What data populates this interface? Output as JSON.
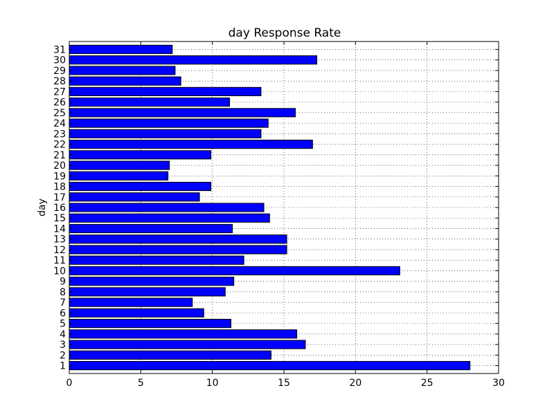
{
  "chart_data": {
    "type": "bar",
    "orientation": "horizontal",
    "title": "day Response Rate",
    "xlabel": "",
    "ylabel": "day",
    "xlim": [
      0,
      30
    ],
    "x_ticks": [
      "0",
      "5",
      "10",
      "15",
      "20",
      "25",
      "30"
    ],
    "grid": true,
    "bar_color": "#0000ff",
    "categories": [
      "1",
      "2",
      "3",
      "4",
      "5",
      "6",
      "7",
      "8",
      "9",
      "10",
      "11",
      "12",
      "13",
      "14",
      "15",
      "16",
      "17",
      "18",
      "19",
      "20",
      "21",
      "22",
      "23",
      "24",
      "25",
      "26",
      "27",
      "28",
      "29",
      "30",
      "31"
    ],
    "values": [
      28.0,
      14.1,
      16.5,
      15.9,
      11.3,
      9.4,
      8.6,
      10.9,
      11.5,
      23.1,
      12.2,
      15.2,
      15.2,
      11.4,
      14.0,
      13.6,
      9.1,
      9.9,
      6.9,
      7.0,
      9.9,
      17.0,
      13.4,
      13.9,
      15.8,
      11.2,
      13.4,
      7.8,
      7.4,
      17.3,
      7.2
    ]
  }
}
